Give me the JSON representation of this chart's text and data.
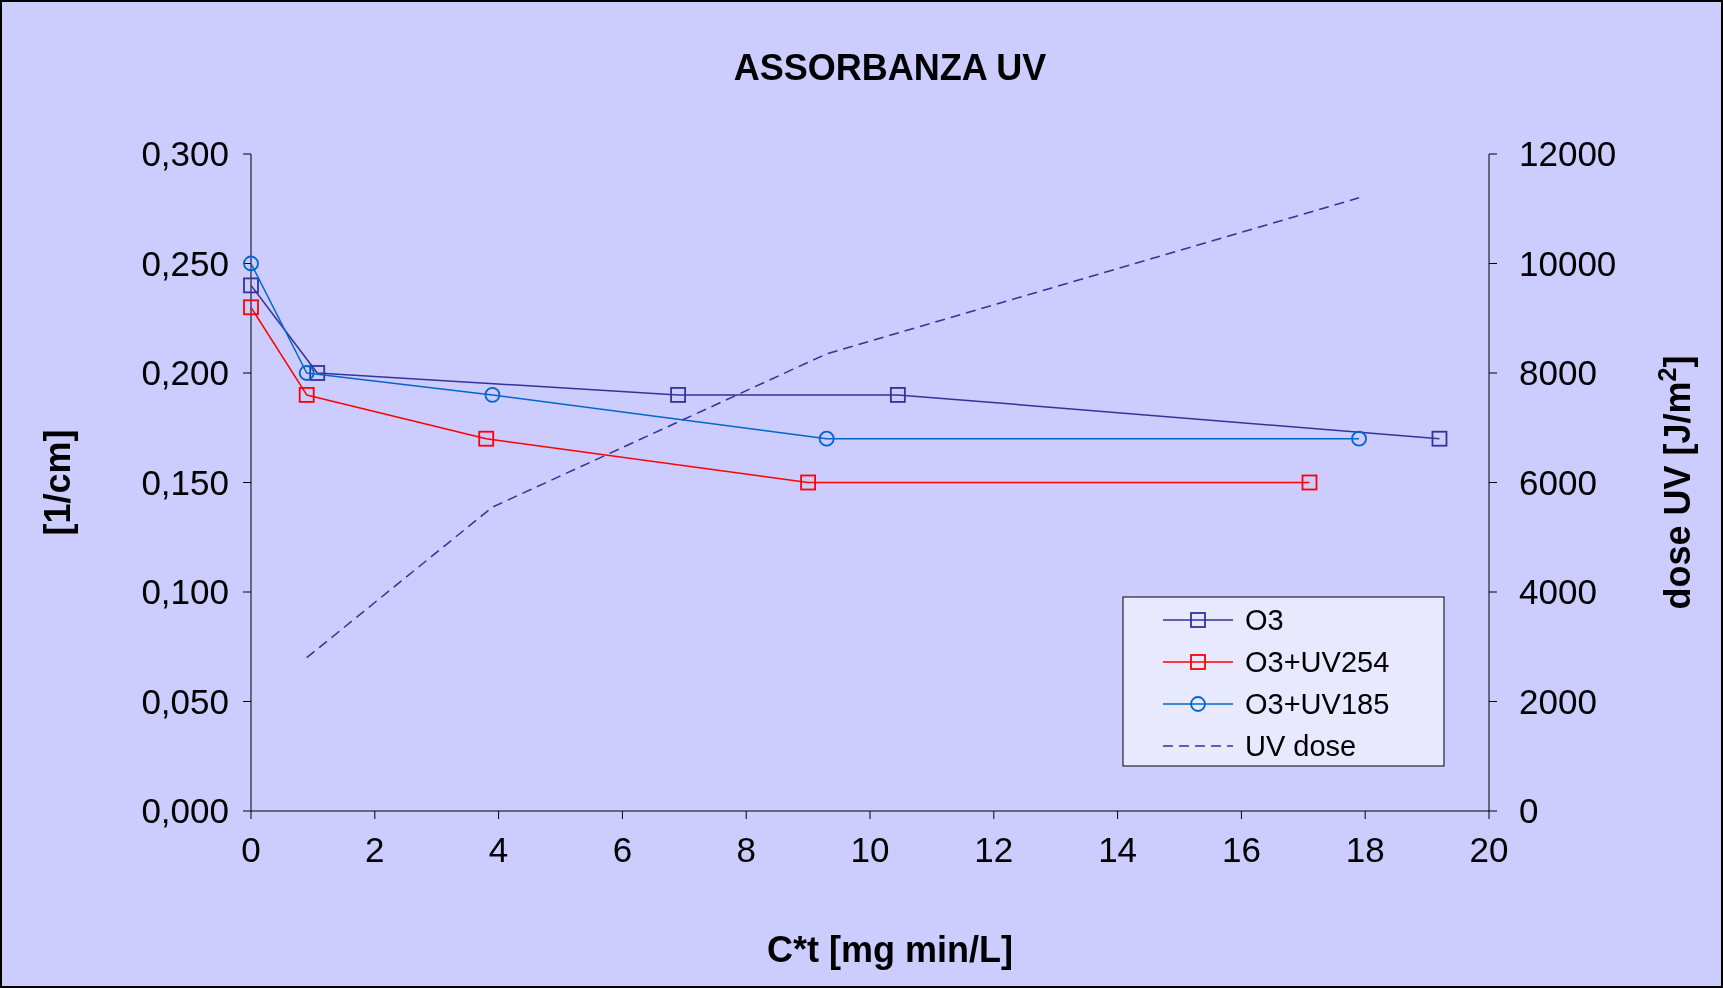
{
  "chart_data": {
    "type": "line",
    "title": "ASSORBANZA UV",
    "xlabel": "C*t [mg min/L]",
    "ylabel": "[1/cm]",
    "y2label": "dose UV  [J/m$^{2}$]",
    "xlim": [
      0,
      20
    ],
    "xticks": [
      0,
      2,
      4,
      6,
      8,
      10,
      12,
      14,
      16,
      18,
      20
    ],
    "ylim": [
      0,
      0.3
    ],
    "yticks": [
      {
        "value": 0,
        "label": "0,000"
      },
      {
        "value": 0.05,
        "label": "0,050"
      },
      {
        "value": 0.1,
        "label": "0,100"
      },
      {
        "value": 0.15,
        "label": "0,150"
      },
      {
        "value": 0.2,
        "label": "0,200"
      },
      {
        "value": 0.25,
        "label": "0,250"
      },
      {
        "value": 0.3,
        "label": "0,300"
      }
    ],
    "y2lim": [
      0,
      12000
    ],
    "y2ticks": [
      0,
      2000,
      4000,
      6000,
      8000,
      10000,
      12000
    ],
    "grid": false,
    "legend": "bottom right",
    "series": [
      {
        "name": "O3",
        "color": "#333399",
        "marker": "square",
        "line_style": "solid",
        "x": [
          0,
          1.07,
          6.9,
          10.45,
          19.2
        ],
        "values": [
          0.24,
          0.2,
          0.19,
          0.19,
          0.17
        ]
      },
      {
        "name": "O3+UV254",
        "color": "#ff0000",
        "marker": "square",
        "line_style": "solid",
        "x": [
          0,
          0.9,
          3.8,
          9.0,
          17.1
        ],
        "values": [
          0.23,
          0.19,
          0.17,
          0.15,
          0.15
        ]
      },
      {
        "name": "O3+UV185",
        "color": "#0066cc",
        "marker": "circle",
        "line_style": "solid",
        "x": [
          0,
          0.9,
          3.9,
          9.3,
          17.9
        ],
        "values": [
          0.25,
          0.2,
          0.19,
          0.17,
          0.17
        ]
      },
      {
        "name": "UV dose",
        "color": "#333399",
        "marker": "none",
        "line_style": "dashed",
        "axis": "y2",
        "x": [
          0.9,
          3.9,
          9.3,
          17.9
        ],
        "values": [
          2800,
          5550,
          8350,
          11200
        ]
      }
    ]
  }
}
